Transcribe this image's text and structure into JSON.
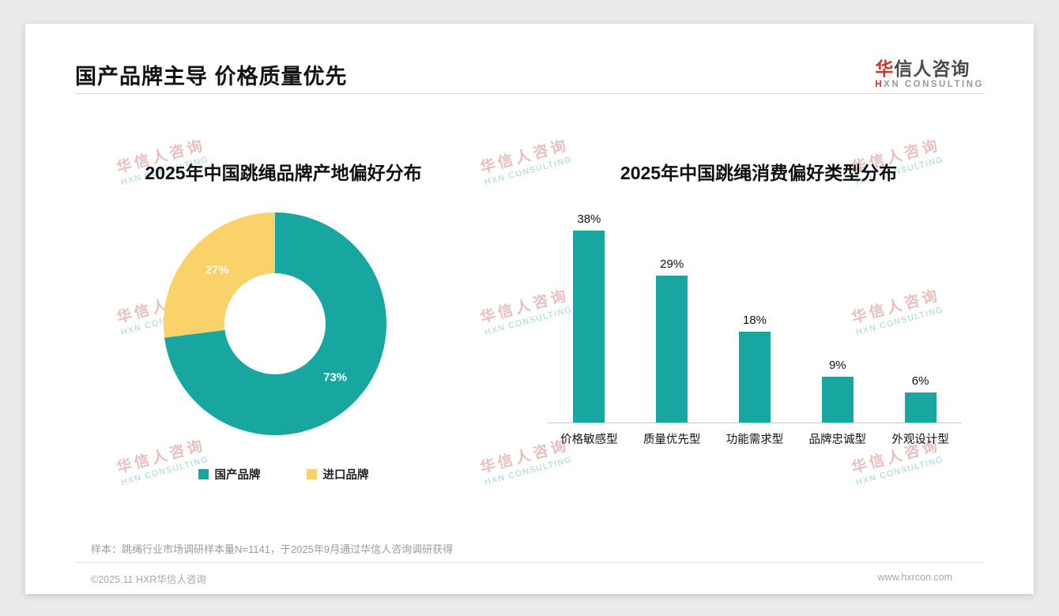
{
  "header": {
    "title": "国产品牌主导 价格质量优先",
    "logo": {
      "accent_char": "华",
      "name_rest": "信人咨询",
      "sub_accent": "H",
      "sub_rest": "XN CONSULTING"
    }
  },
  "watermark": {
    "line1": "华信人咨询",
    "line2": "HXN CONSULTING"
  },
  "chart_data": [
    {
      "type": "pie",
      "donut": true,
      "title": "2025年中国跳绳品牌产地偏好分布",
      "labels": [
        "国产品牌",
        "进口品牌"
      ],
      "values": [
        73,
        27
      ],
      "value_labels": [
        "73%",
        "27%"
      ],
      "colors": [
        "#17A6A0",
        "#FBD169"
      ],
      "legend_position": "bottom"
    },
    {
      "type": "bar",
      "title": "2025年中国跳绳消费偏好类型分布",
      "categories": [
        "价格敏感型",
        "质量优先型",
        "功能需求型",
        "品牌忠诚型",
        "外观设计型"
      ],
      "values": [
        38,
        29,
        18,
        9,
        6
      ],
      "value_labels": [
        "38%",
        "29%",
        "18%",
        "9%",
        "6%"
      ],
      "bar_color": "#17A6A0",
      "ylim": [
        0,
        40
      ],
      "grid": false,
      "xlabel": "",
      "ylabel": ""
    }
  ],
  "footnote": "样本：跳绳行业市场调研样本量N=1141，于2025年9月通过华信人咨询调研获得",
  "footer": {
    "left": "©2025.11 HXR华信人咨询",
    "right": "www.hxrcon.com"
  }
}
